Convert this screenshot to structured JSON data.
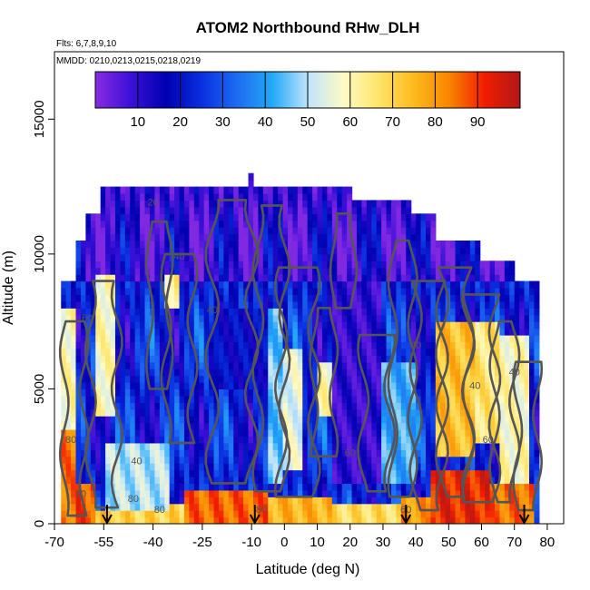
{
  "chart_data": {
    "type": "heatmap",
    "title": "ATOM2 Northbound RHw_DLH",
    "annotations": {
      "flights": "Flts: 6,7,8,9,10",
      "dates": "MMDD: 0210,0213,0215,0218,0219"
    },
    "xlabel": "Latitude (deg N)",
    "ylabel": "Altitude (m)",
    "xlim": [
      -70,
      85
    ],
    "ylim": [
      0,
      17500
    ],
    "x_ticks": [
      -70,
      -55,
      -40,
      -25,
      -10,
      0,
      10,
      20,
      30,
      40,
      50,
      60,
      70,
      80
    ],
    "x_tick_labels": [
      "-70",
      "-55",
      "-40",
      "-25",
      "-10",
      "0",
      "10",
      "20",
      "30",
      "40",
      "50",
      "60",
      "70",
      "80"
    ],
    "y_ticks": [
      0,
      5000,
      10000,
      15000
    ],
    "y_tick_labels": [
      "0",
      "5000",
      "10000",
      "15000"
    ],
    "colorbar": {
      "min": 0,
      "max": 100,
      "tick_values": [
        10,
        20,
        30,
        40,
        50,
        60,
        70,
        80,
        90
      ],
      "tick_labels": [
        "10",
        "20",
        "30",
        "40",
        "50",
        "60",
        "70",
        "80",
        "90"
      ],
      "colors": [
        "#8a2be2",
        "#3b10d8",
        "#0000b0",
        "#0a2fe0",
        "#1e6bf2",
        "#22a9f7",
        "#bfe4fb",
        "#fdfac8",
        "#fde56a",
        "#fdba1c",
        "#f98500",
        "#f21c00",
        "#b01818"
      ]
    },
    "column_tops": [
      {
        "lat_from": -68,
        "lat_to": -63,
        "top": 9000
      },
      {
        "lat_from": -63,
        "lat_to": -60,
        "top": 10500
      },
      {
        "lat_from": -60,
        "lat_to": -56,
        "top": 11300
      },
      {
        "lat_from": -56,
        "lat_to": -50,
        "top": 12400
      },
      {
        "lat_from": -50,
        "lat_to": -11,
        "top": 12400
      },
      {
        "lat_from": -11,
        "lat_to": -9.5,
        "top": 13000
      },
      {
        "lat_from": -9.5,
        "lat_to": 20,
        "top": 12300
      },
      {
        "lat_from": 20,
        "lat_to": 38,
        "top": 12000
      },
      {
        "lat_from": 38,
        "lat_to": 46,
        "top": 11300
      },
      {
        "lat_from": 46,
        "lat_to": 60,
        "top": 10500
      },
      {
        "lat_from": 60,
        "lat_to": 70,
        "top": 9600
      },
      {
        "lat_from": 70,
        "lat_to": 78,
        "top": 8800
      }
    ],
    "gaps": [
      {
        "lat_from": 78,
        "lat_to": 80.5,
        "alt_from": 0,
        "alt_to": 6500
      }
    ],
    "blob_max_lat": 81.5,
    "regions": [
      {
        "lat": [
          -68,
          -63
        ],
        "alt": [
          0,
          3500
        ],
        "rh": 84
      },
      {
        "lat": [
          -63,
          -58
        ],
        "alt": [
          0,
          1500
        ],
        "rh": 88
      },
      {
        "lat": [
          -58,
          -50
        ],
        "alt": [
          0,
          500
        ],
        "rh": 72
      },
      {
        "lat": [
          -50,
          -30
        ],
        "alt": [
          0,
          700
        ],
        "rh": 70
      },
      {
        "lat": [
          -30,
          -5
        ],
        "alt": [
          0,
          1200
        ],
        "rh": 86
      },
      {
        "lat": [
          -5,
          15
        ],
        "alt": [
          0,
          1000
        ],
        "rh": 76
      },
      {
        "lat": [
          15,
          35
        ],
        "alt": [
          0,
          800
        ],
        "rh": 68
      },
      {
        "lat": [
          35,
          45
        ],
        "alt": [
          0,
          900
        ],
        "rh": 80
      },
      {
        "lat": [
          45,
          62
        ],
        "alt": [
          0,
          2000
        ],
        "rh": 92
      },
      {
        "lat": [
          62,
          76
        ],
        "alt": [
          0,
          1500
        ],
        "rh": 85
      },
      {
        "lat": [
          -68,
          -63
        ],
        "alt": [
          3500,
          8000
        ],
        "rh": 60
      },
      {
        "lat": [
          -58,
          -52
        ],
        "alt": [
          4000,
          9200
        ],
        "rh": 60
      },
      {
        "lat": [
          -36,
          -32
        ],
        "alt": [
          8000,
          9200
        ],
        "rh": 64
      },
      {
        "lat": [
          -55,
          -35
        ],
        "alt": [
          600,
          3000
        ],
        "rh": 50
      },
      {
        "lat": [
          -20,
          -5
        ],
        "alt": [
          5000,
          8000
        ],
        "rh": 18
      },
      {
        "lat": [
          -5,
          0
        ],
        "alt": [
          1500,
          8000
        ],
        "rh": 45
      },
      {
        "lat": [
          0,
          6
        ],
        "alt": [
          2000,
          6500
        ],
        "rh": 55
      },
      {
        "lat": [
          10,
          14
        ],
        "alt": [
          4000,
          6000
        ],
        "rh": 60
      },
      {
        "lat": [
          15,
          30
        ],
        "alt": [
          1500,
          9000
        ],
        "rh": 10
      },
      {
        "lat": [
          30,
          40
        ],
        "alt": [
          1500,
          6000
        ],
        "rh": 42
      },
      {
        "lat": [
          46,
          58
        ],
        "alt": [
          2500,
          7500
        ],
        "rh": 74
      },
      {
        "lat": [
          58,
          66
        ],
        "alt": [
          3000,
          7500
        ],
        "rh": 66
      },
      {
        "lat": [
          66,
          75
        ],
        "alt": [
          1500,
          7000
        ],
        "rh": 60
      }
    ],
    "contour_labels": [
      {
        "text": "20",
        "lat": -40,
        "alt": 11800
      },
      {
        "text": "40",
        "lat": -32,
        "alt": 9800
      },
      {
        "text": "60",
        "lat": -60,
        "alt": 7500
      },
      {
        "text": "80",
        "lat": -65,
        "alt": 3000
      },
      {
        "text": "40",
        "lat": -45,
        "alt": 2200
      },
      {
        "text": "60",
        "lat": -62,
        "alt": 1000
      },
      {
        "text": "80",
        "lat": -46,
        "alt": 800
      },
      {
        "text": "80",
        "lat": -38,
        "alt": 400
      },
      {
        "text": "40",
        "lat": -22,
        "alt": 7800
      },
      {
        "text": "80",
        "lat": -7,
        "alt": 400
      },
      {
        "text": "60",
        "lat": 20,
        "alt": 2500
      },
      {
        "text": "40",
        "lat": 40,
        "alt": 6500
      },
      {
        "text": "40",
        "lat": 58,
        "alt": 5000
      },
      {
        "text": "40",
        "lat": 70,
        "alt": 5500
      },
      {
        "text": "60",
        "lat": 62,
        "alt": 3000
      },
      {
        "text": "60",
        "lat": 37,
        "alt": 400
      }
    ],
    "arrows_lat": [
      -54,
      -9,
      37,
      73
    ],
    "contour_seeds": [
      {
        "lat": -55,
        "w": 4,
        "alt_from": 600,
        "alt_to": 9000,
        "ph": 0.3,
        "amp": 1.6
      },
      {
        "lat": -38,
        "w": 3,
        "alt_from": 5000,
        "alt_to": 11200,
        "ph": 1.1,
        "amp": 1.0
      },
      {
        "lat": -32,
        "w": 4,
        "alt_from": 3000,
        "alt_to": 10000,
        "ph": 2.0,
        "amp": 1.5
      },
      {
        "lat": -16,
        "w": 6,
        "alt_from": 1500,
        "alt_to": 12000,
        "ph": 0.7,
        "amp": 2.0
      },
      {
        "lat": -4,
        "w": 4,
        "alt_from": 1200,
        "alt_to": 11800,
        "ph": 1.6,
        "amp": 1.6
      },
      {
        "lat": 4,
        "w": 5,
        "alt_from": 1000,
        "alt_to": 9500,
        "ph": 2.6,
        "amp": 1.8
      },
      {
        "lat": 12,
        "w": 3,
        "alt_from": 2500,
        "alt_to": 8000,
        "ph": 0.9,
        "amp": 1.2
      },
      {
        "lat": 18,
        "w": 3,
        "alt_from": 8000,
        "alt_to": 11500,
        "ph": 1.7,
        "amp": 1.0
      },
      {
        "lat": 28,
        "w": 4,
        "alt_from": 1200,
        "alt_to": 7000,
        "ph": 0.2,
        "amp": 1.6
      },
      {
        "lat": 36,
        "w": 3,
        "alt_from": 1000,
        "alt_to": 10500,
        "ph": 2.3,
        "amp": 1.4
      },
      {
        "lat": 44,
        "w": 4,
        "alt_from": 500,
        "alt_to": 9000,
        "ph": 1.4,
        "amp": 1.8
      },
      {
        "lat": 52,
        "w": 4,
        "alt_from": 1000,
        "alt_to": 9500,
        "ph": 0.5,
        "amp": 1.9
      },
      {
        "lat": 60,
        "w": 4,
        "alt_from": 800,
        "alt_to": 8500,
        "ph": 2.8,
        "amp": 1.7
      },
      {
        "lat": 67,
        "w": 3,
        "alt_from": 800,
        "alt_to": 7500,
        "ph": 1.2,
        "amp": 1.5
      },
      {
        "lat": 74,
        "w": 3,
        "alt_from": 500,
        "alt_to": 6000,
        "ph": 2.1,
        "amp": 1.3
      },
      {
        "lat": -64,
        "w": 3,
        "alt_from": 300,
        "alt_to": 7500,
        "ph": 0.4,
        "amp": 1.3
      }
    ]
  }
}
